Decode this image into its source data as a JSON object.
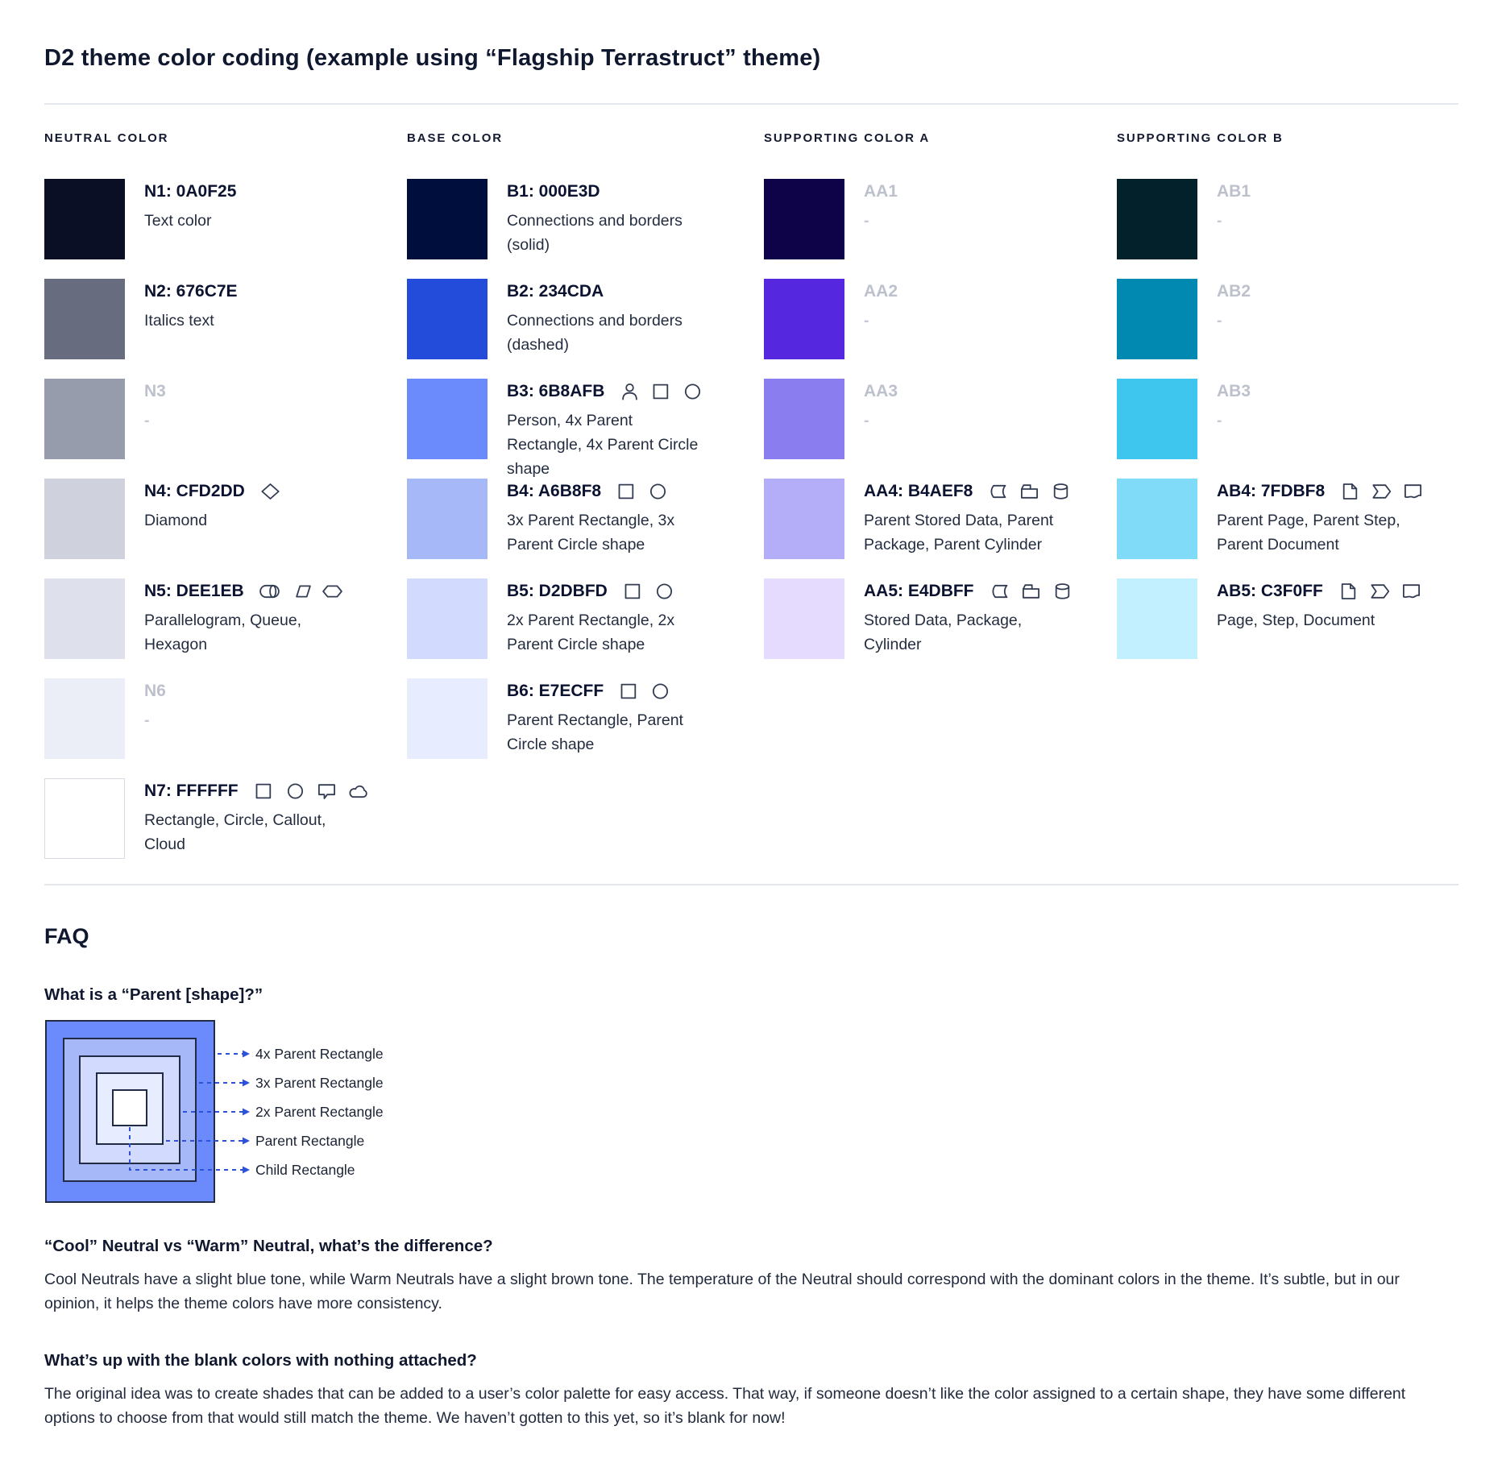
{
  "title": "D2 theme color coding (example using “Flagship Terrastruct” theme)",
  "palette": {
    "icon_color": "#333C52",
    "columns": [
      {
        "header": "NEUTRAL COLOR",
        "entries": [
          {
            "label": "N1: 0A0F25",
            "swatch_color": "#0A0F25",
            "blank": false,
            "icons": [],
            "description": "Text color"
          },
          {
            "label": "N2: 676C7E",
            "swatch_color": "#676C7E",
            "blank": false,
            "icons": [],
            "description": "Italics text"
          },
          {
            "label": "N3",
            "swatch_color": "#969CAC",
            "blank": true,
            "icons": [],
            "description": "-"
          },
          {
            "label": "N4: CFD2DD",
            "swatch_color": "#CFD2DD",
            "blank": false,
            "icons": [
              "diamond-icon"
            ],
            "description": "Diamond"
          },
          {
            "label": "N5: DEE1EB",
            "swatch_color": "#DEE1EB",
            "blank": false,
            "icons": [
              "queue-icon",
              "parallelogram-icon",
              "hexagon-icon"
            ],
            "description": "Parallelogram, Queue, Hexagon"
          },
          {
            "label": "N6",
            "swatch_color": "#EBEEF7",
            "blank": true,
            "icons": [],
            "description": "-"
          },
          {
            "label": "N7: FFFFFF",
            "swatch_color": "#FFFFFF",
            "bordered": true,
            "blank": false,
            "icons": [
              "rectangle-icon",
              "circle-icon",
              "callout-icon",
              "cloud-icon"
            ],
            "description": "Rectangle, Circle, Callout, Cloud"
          }
        ]
      },
      {
        "header": "BASE COLOR",
        "entries": [
          {
            "label": "B1: 000E3D",
            "swatch_color": "#000E3D",
            "blank": false,
            "icons": [],
            "description": "Connections and borders (solid)"
          },
          {
            "label": "B2: 234CDA",
            "swatch_color": "#234CDA",
            "blank": false,
            "icons": [],
            "description": "Connections and borders (dashed)"
          },
          {
            "label": "B3: 6B8AFB",
            "swatch_color": "#6B8AFB",
            "blank": false,
            "icons": [
              "person-icon",
              "rectangle-icon",
              "circle-icon"
            ],
            "description": "Person, 4x Parent Rectangle, 4x Parent Circle shape"
          },
          {
            "label": "B4: A6B8F8",
            "swatch_color": "#A6B8F8",
            "blank": false,
            "icons": [
              "rectangle-icon",
              "circle-icon"
            ],
            "description": "3x Parent Rectangle, 3x Parent Circle shape"
          },
          {
            "label": "B5: D2DBFD",
            "swatch_color": "#D2DBFD",
            "blank": false,
            "icons": [
              "rectangle-icon",
              "circle-icon"
            ],
            "description": "2x Parent Rectangle, 2x Parent Circle shape"
          },
          {
            "label": "B6: E7ECFF",
            "swatch_color": "#E7ECFF",
            "blank": false,
            "icons": [
              "rectangle-icon",
              "circle-icon"
            ],
            "description": "Parent Rectangle, Parent Circle shape"
          }
        ]
      },
      {
        "header": "SUPPORTING COLOR A",
        "entries": [
          {
            "label": "AA1",
            "swatch_color": "#0E0249",
            "blank": true,
            "icons": [],
            "description": "-"
          },
          {
            "label": "AA2",
            "swatch_color": "#5527DE",
            "blank": true,
            "icons": [],
            "description": "-"
          },
          {
            "label": "AA3",
            "swatch_color": "#8A7DF0",
            "blank": true,
            "icons": [],
            "description": "-"
          },
          {
            "label": "AA4: B4AEF8",
            "swatch_color": "#B4AEF8",
            "blank": false,
            "icons": [
              "stored-data-icon",
              "package-icon",
              "cylinder-icon"
            ],
            "description": "Parent Stored Data, Parent Package,  Parent Cylinder"
          },
          {
            "label": "AA5: E4DBFF",
            "swatch_color": "#E4DBFF",
            "blank": false,
            "icons": [
              "stored-data-icon",
              "package-icon",
              "cylinder-icon"
            ],
            "description": "Stored Data, Package, Cylinder"
          }
        ]
      },
      {
        "header": "SUPPORTING COLOR B",
        "entries": [
          {
            "label": "AB1",
            "swatch_color": "#03212B",
            "blank": true,
            "icons": [],
            "description": "-"
          },
          {
            "label": "AB2",
            "swatch_color": "#0289B2",
            "blank": true,
            "icons": [],
            "description": "-"
          },
          {
            "label": "AB3",
            "swatch_color": "#3FC6EF",
            "blank": true,
            "icons": [],
            "description": "-"
          },
          {
            "label": "AB4: 7FDBF8",
            "swatch_color": "#7FDBF8",
            "blank": false,
            "icons": [
              "page-icon",
              "step-icon",
              "document-icon"
            ],
            "description": "Parent Page, Parent Step, Parent Document"
          },
          {
            "label": "AB5: C3F0FF",
            "swatch_color": "#C3F0FF",
            "blank": false,
            "icons": [
              "page-icon",
              "step-icon",
              "document-icon"
            ],
            "description": "Page, Step, Document"
          }
        ]
      }
    ]
  },
  "faq": {
    "heading": "FAQ",
    "q1": {
      "question": "What is a “Parent [shape]?”",
      "diagram": {
        "labels": [
          "4x Parent Rectangle",
          "3x Parent Rectangle",
          "2x Parent Rectangle",
          "Parent Rectangle",
          "Child Rectangle"
        ],
        "fills": [
          "#6B8AFB",
          "#A6B8F8",
          "#D2DBFD",
          "#E7ECFF",
          "#FFFFFF"
        ],
        "border_color": "#222B45",
        "arrow_color": "#2E51DB",
        "label_color": "#1A2233"
      }
    },
    "q2": {
      "question": "“Cool” Neutral vs “Warm” Neutral, what’s the difference?",
      "answer": "Cool Neutrals have a slight blue tone, while Warm Neutrals have a slight brown tone. The temperature of the Neutral should correspond with the dominant colors in the theme. It’s subtle, but in our opinion, it helps the theme colors have more consistency."
    },
    "q3": {
      "question": "What’s up with the blank colors with nothing attached?",
      "answer": "The original idea was to create shades that can be added to a user’s color palette for easy access. That way, if someone doesn’t like the color assigned to a certain shape, they have some different options to choose from that would still match the theme. We haven’t gotten to this yet, so it’s blank for now!"
    }
  }
}
